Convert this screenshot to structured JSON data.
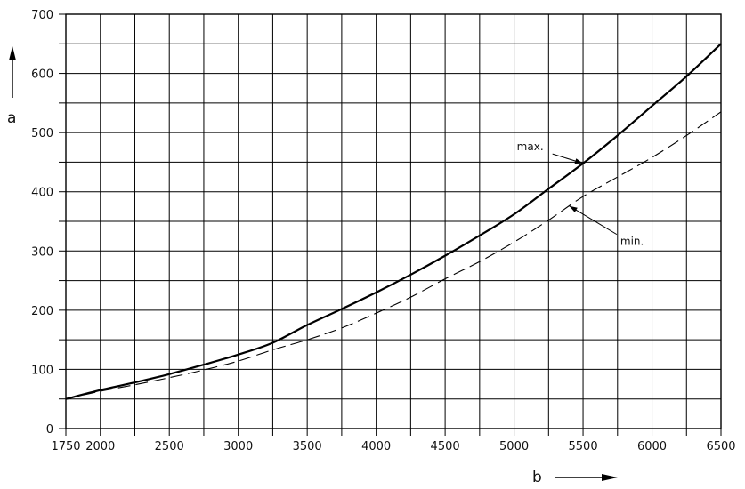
{
  "chart_data": {
    "type": "line",
    "xlabel": "b",
    "ylabel": "a",
    "xlim": [
      1750,
      6500
    ],
    "ylim": [
      0,
      700
    ],
    "x_ticks": [
      1750,
      2000,
      2500,
      3000,
      3500,
      4000,
      4500,
      5000,
      5500,
      6000,
      6500
    ],
    "y_ticks": [
      0,
      100,
      200,
      300,
      400,
      500,
      600,
      700
    ],
    "grid": true,
    "series": [
      {
        "name": "max.",
        "style": "solid",
        "x": [
          1750,
          2000,
          2250,
          2500,
          2750,
          3000,
          3250,
          3500,
          3750,
          4000,
          4250,
          4500,
          4750,
          5000,
          5250,
          5500,
          5750,
          6000,
          6250,
          6500
        ],
        "y": [
          50,
          65,
          78,
          92,
          108,
          125,
          145,
          175,
          202,
          230,
          260,
          292,
          326,
          362,
          405,
          448,
          495,
          545,
          595,
          650
        ]
      },
      {
        "name": "min.",
        "style": "dashed",
        "x": [
          1750,
          2000,
          2250,
          2500,
          2750,
          3000,
          3250,
          3500,
          3750,
          4000,
          4250,
          4500,
          4750,
          5000,
          5250,
          5500,
          5750,
          6000,
          6250,
          6500
        ],
        "y": [
          50,
          63,
          74,
          86,
          99,
          114,
          133,
          150,
          170,
          195,
          222,
          253,
          282,
          315,
          352,
          392,
          425,
          458,
          495,
          535
        ]
      }
    ],
    "annotations": [
      {
        "text": "max.",
        "series": "max.",
        "at_x": 5500,
        "text_x": 5020,
        "text_y": 470
      },
      {
        "text": "min.",
        "series": "min.",
        "at_x": 5400,
        "text_x": 5770,
        "text_y": 310
      }
    ],
    "colors": {
      "line": "#000000",
      "grid": "#000000",
      "background": "#ffffff"
    }
  }
}
